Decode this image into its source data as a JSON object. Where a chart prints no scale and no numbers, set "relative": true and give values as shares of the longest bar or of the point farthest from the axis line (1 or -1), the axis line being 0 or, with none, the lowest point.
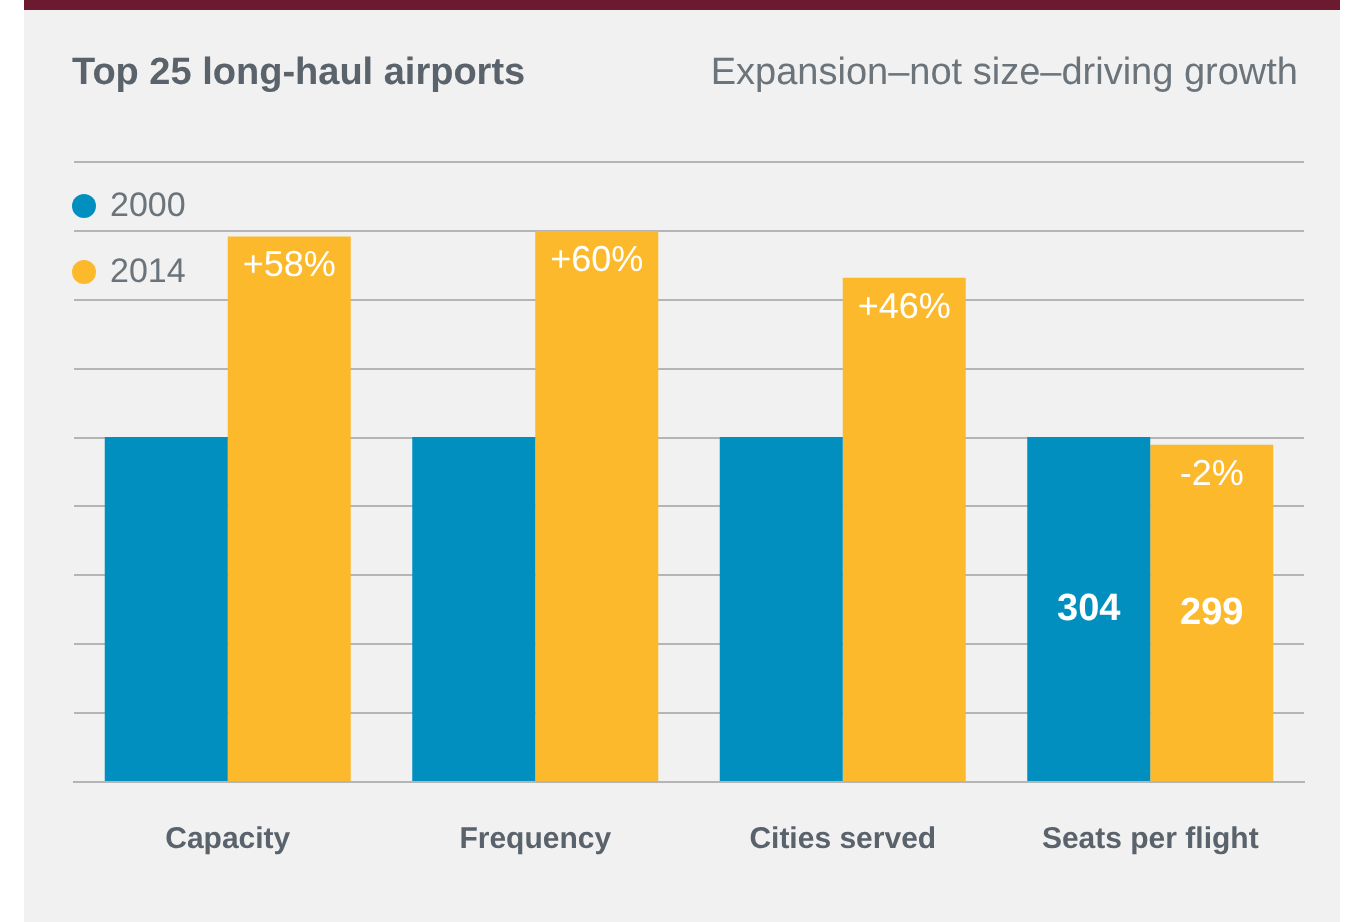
{
  "chart_data": {
    "type": "bar",
    "title": "Top 25 long-haul airports",
    "subtitle": "Expansion–not size–driving growth",
    "relative": true,
    "categories": [
      "Capacity",
      "Frequency",
      "Cities served",
      "Seats per flight"
    ],
    "series": [
      {
        "name": "2000",
        "color": "#008fbf",
        "values": [
          0.626,
          0.626,
          0.626,
          0.626
        ]
      },
      {
        "name": "2014",
        "color": "#fbb92b",
        "values": [
          0.99,
          1,
          0.915,
          0.612
        ]
      }
    ],
    "tick_labels": "x",
    "annotations": [
      {
        "text": "+58%",
        "x": "Capacity",
        "y": 0.99
      },
      {
        "text": "+60%",
        "x": "Frequency",
        "y": 1
      },
      {
        "text": "+46%",
        "x": "Cities served",
        "y": 0.915
      },
      {
        "text": "-2%",
        "x": "Seats per flight",
        "y": 0.612
      },
      {
        "text": "304",
        "x": "Seats per flight",
        "y": 0.313
      },
      {
        "text": "299",
        "x": "Seats per flight",
        "y": 0.306
      }
    ],
    "grid": "y",
    "legend": "top left"
  }
}
